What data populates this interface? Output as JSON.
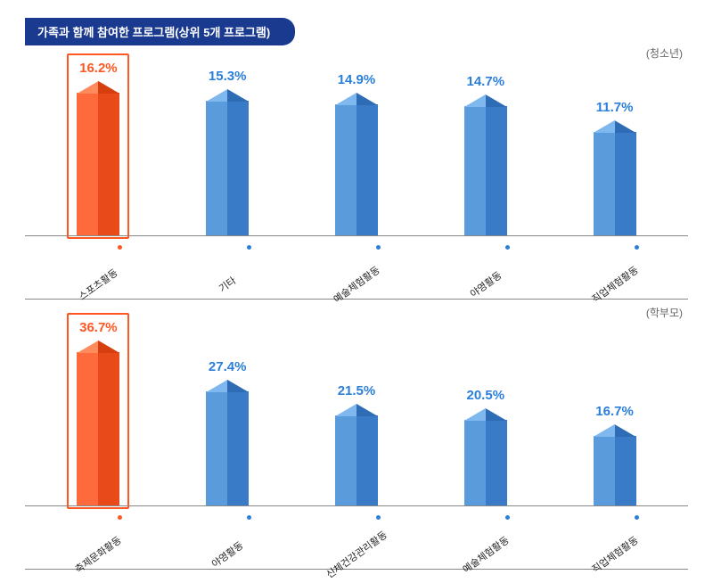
{
  "title": "가족과 함께 참여한 프로그램(상위 5개 프로그램)",
  "colors": {
    "title_bg": "#1a3a8f",
    "title_text": "#ffffff",
    "sub_label": "#666666",
    "axis_line": "#888888",
    "cat_text": "#222222",
    "highlight_border": "#ff5722",
    "blue_text": "#2b7fd9",
    "orange_text": "#ff5722",
    "blue_bar_left": "#5a9bdc",
    "blue_bar_right": "#3a7bc8",
    "blue_peak_left": "#7fb8ee",
    "blue_peak_right": "#2e6cb5",
    "orange_bar_left": "#ff6a3c",
    "orange_bar_right": "#e84a1a",
    "orange_peak_left": "#ff8a5c",
    "orange_peak_right": "#d63e10",
    "blue_dot": "#2b7fd9",
    "orange_dot": "#ff5722"
  },
  "peak_height": 14,
  "chart1": {
    "sub_label": "(청소년)",
    "max_bar_height": 160,
    "max_value": 16.2,
    "bars": [
      {
        "label": "스포츠활동",
        "value": 16.2,
        "display": "16.2%",
        "highlight": true
      },
      {
        "label": "기타",
        "value": 15.3,
        "display": "15.3%",
        "highlight": false
      },
      {
        "label": "예술체험활동",
        "value": 14.9,
        "display": "14.9%",
        "highlight": false
      },
      {
        "label": "야영활동",
        "value": 14.7,
        "display": "14.7%",
        "highlight": false
      },
      {
        "label": "직업체험활동",
        "value": 11.7,
        "display": "11.7%",
        "highlight": false
      }
    ]
  },
  "chart2": {
    "sub_label": "(학부모)",
    "max_bar_height": 172,
    "max_value": 36.7,
    "bars": [
      {
        "label": "축제문화활동",
        "value": 36.7,
        "display": "36.7%",
        "highlight": true
      },
      {
        "label": "야영활동",
        "value": 27.4,
        "display": "27.4%",
        "highlight": false
      },
      {
        "label": "신체건강관리활동",
        "value": 21.5,
        "display": "21.5%",
        "highlight": false
      },
      {
        "label": "예술체험활동",
        "value": 20.5,
        "display": "20.5%",
        "highlight": false
      },
      {
        "label": "직업체험활동",
        "value": 16.7,
        "display": "16.7%",
        "highlight": false
      }
    ]
  }
}
